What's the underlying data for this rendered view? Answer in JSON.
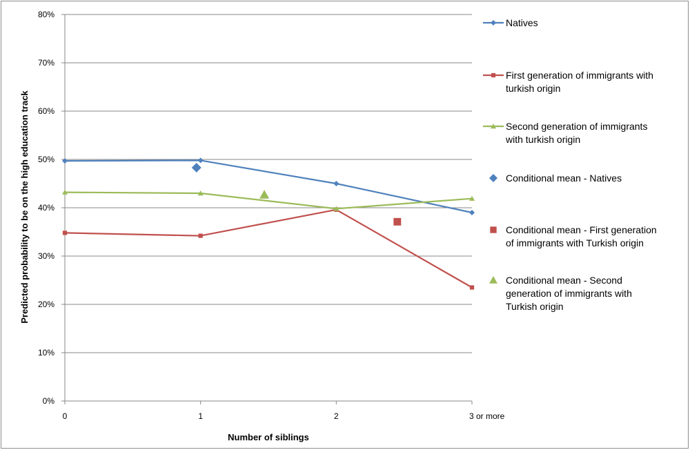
{
  "chart_data": {
    "type": "line",
    "xlabel": "Number of siblings",
    "ylabel": "Predicted probability to be on the high education track",
    "categories": [
      "0",
      "1",
      "2",
      "3 or more"
    ],
    "ylim": [
      0,
      0.8
    ],
    "yticks": [
      "0%",
      "10%",
      "20%",
      "30%",
      "40%",
      "50%",
      "60%",
      "70%",
      "80%"
    ],
    "grid": "horizontal",
    "legend_position": "right",
    "series": [
      {
        "name": "Natives",
        "kind": "line",
        "marker": "diamond",
        "color": "#4f81bd",
        "values": [
          0.497,
          0.498,
          0.45,
          0.39
        ]
      },
      {
        "name": "First generation of immigrants with turkish origin",
        "kind": "line",
        "marker": "square",
        "color": "#c0504d",
        "values": [
          0.348,
          0.342,
          0.396,
          0.235
        ]
      },
      {
        "name": "Second generation of immigrants with turkish origin",
        "kind": "line",
        "marker": "triangle",
        "color": "#9bbb59",
        "values": [
          0.432,
          0.43,
          0.398,
          0.419
        ]
      },
      {
        "name": "Conditional mean - Natives",
        "kind": "point",
        "marker": "diamond",
        "color": "#4f81bd",
        "x": 0.97,
        "y": 0.483
      },
      {
        "name": "Conditional mean - First generation of immigrants with Turkish origin",
        "kind": "point",
        "marker": "square",
        "color": "#c0504d",
        "x": 2.45,
        "y": 0.371
      },
      {
        "name": "Conditional mean - Second generation of immigrants with Turkish origin",
        "kind": "point",
        "marker": "triangle",
        "color": "#9bbb59",
        "x": 1.47,
        "y": 0.427
      }
    ],
    "legend": [
      [
        "Natives"
      ],
      [
        "First generation of immigrants with",
        "turkish origin"
      ],
      [
        "Second generation of immigrants",
        "with turkish origin"
      ],
      [
        "Conditional mean - Natives"
      ],
      [
        "Conditional mean - First generation",
        "of immigrants with Turkish origin"
      ],
      [
        "Conditional mean - Second",
        "generation of immigrants with",
        "Turkish origin"
      ]
    ]
  }
}
